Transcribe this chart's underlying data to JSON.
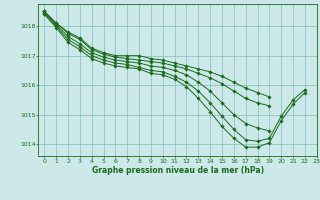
{
  "title": "Graphe pression niveau de la mer (hPa)",
  "background_color": "#cce8e8",
  "grid_color": "#7fbfbf",
  "line_color": "#1a6b1a",
  "xlim": [
    -0.5,
    23
  ],
  "ylim": [
    1013.6,
    1018.75
  ],
  "yticks": [
    1014,
    1015,
    1016,
    1017,
    1018
  ],
  "xticks": [
    0,
    1,
    2,
    3,
    4,
    5,
    6,
    7,
    8,
    9,
    10,
    11,
    12,
    13,
    14,
    15,
    16,
    17,
    18,
    19,
    20,
    21,
    22,
    23
  ],
  "series": [
    [
      1018.5,
      1018.1,
      1017.8,
      1017.6,
      1017.25,
      1017.1,
      1017.0,
      1017.0,
      1017.0,
      1016.9,
      1016.85,
      1016.75,
      1016.65,
      1016.55,
      1016.45,
      1016.3,
      1016.1,
      1015.9,
      1015.75,
      1015.6,
      null,
      null,
      null,
      null
    ],
    [
      1018.5,
      1018.1,
      1017.75,
      1017.55,
      1017.2,
      1017.05,
      1016.95,
      1016.9,
      1016.85,
      1016.8,
      1016.75,
      1016.65,
      1016.55,
      1016.4,
      1016.25,
      1016.05,
      1015.8,
      1015.55,
      1015.4,
      1015.3,
      null,
      null,
      null,
      null
    ],
    [
      1018.5,
      1018.05,
      1017.65,
      1017.4,
      1017.1,
      1016.95,
      1016.85,
      1016.8,
      1016.75,
      1016.65,
      1016.6,
      1016.5,
      1016.35,
      1016.1,
      1015.8,
      1015.4,
      1015.0,
      1014.7,
      1014.55,
      1014.45,
      null,
      null,
      null,
      null
    ],
    [
      1018.45,
      1018.0,
      1017.55,
      1017.3,
      1017.0,
      1016.85,
      1016.75,
      1016.7,
      1016.6,
      1016.5,
      1016.45,
      1016.3,
      1016.1,
      1015.8,
      1015.4,
      1014.95,
      1014.5,
      1014.15,
      1014.1,
      1014.2,
      1014.95,
      1015.5,
      1015.85,
      null
    ],
    [
      1018.4,
      1017.95,
      1017.45,
      1017.2,
      1016.9,
      1016.75,
      1016.65,
      1016.6,
      1016.55,
      1016.4,
      1016.35,
      1016.2,
      1015.95,
      1015.55,
      1015.1,
      1014.6,
      1014.2,
      1013.9,
      1013.9,
      1014.05,
      1014.8,
      1015.35,
      1015.75,
      null
    ]
  ]
}
